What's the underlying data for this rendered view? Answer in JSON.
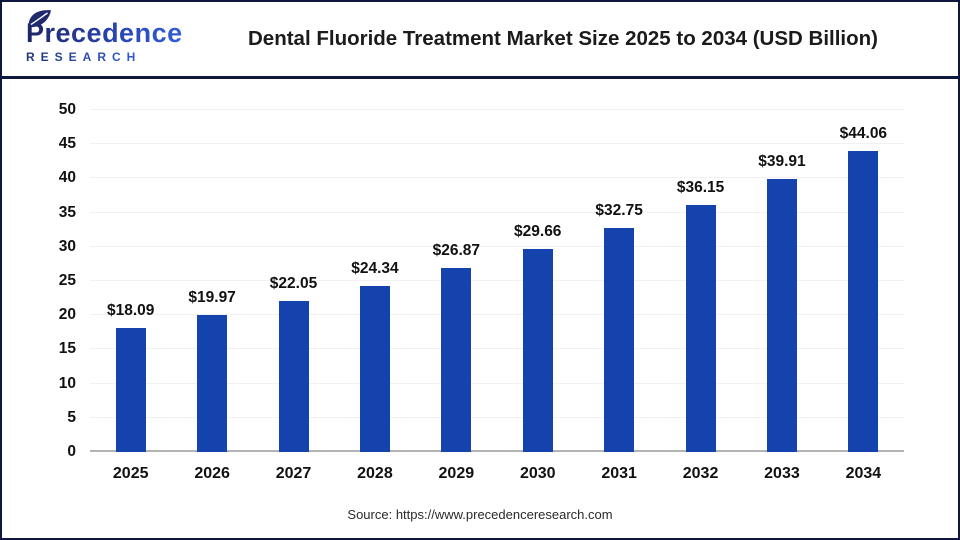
{
  "brand": {
    "name": "Precedence",
    "subtitle": "RESEARCH"
  },
  "header": {
    "title": "Dental Fluoride Treatment Market Size 2025 to 2034 (USD Billion)"
  },
  "footer": {
    "source_text": "Source: https://www.precedenceresearch.com"
  },
  "colors": {
    "bar": "#1443ae",
    "grid": "#f1f1f1",
    "baseline": "#b3b3b3",
    "frame_border": "#10173f",
    "label_text": "#111111",
    "brand_navy": "#1e2566",
    "brand_blue": "#3a6ee2"
  },
  "chart_data": {
    "type": "bar",
    "title": "Dental Fluoride Treatment Market Size 2025 to 2034 (USD Billion)",
    "categories": [
      "2025",
      "2026",
      "2027",
      "2028",
      "2029",
      "2030",
      "2031",
      "2032",
      "2033",
      "2034"
    ],
    "values": [
      18.09,
      19.97,
      22.05,
      24.34,
      26.87,
      29.66,
      32.75,
      36.15,
      39.91,
      44.06
    ],
    "value_labels": [
      "$18.09",
      "$19.97",
      "$22.05",
      "$24.34",
      "$26.87",
      "$29.66",
      "$32.75",
      "$36.15",
      "$39.91",
      "$44.06"
    ],
    "value_prefix": "$",
    "unit": "USD Billion",
    "xlabel": "",
    "ylabel": "",
    "ylim": [
      0,
      50
    ],
    "ytick_step": 5,
    "grid": true,
    "legend": false
  }
}
